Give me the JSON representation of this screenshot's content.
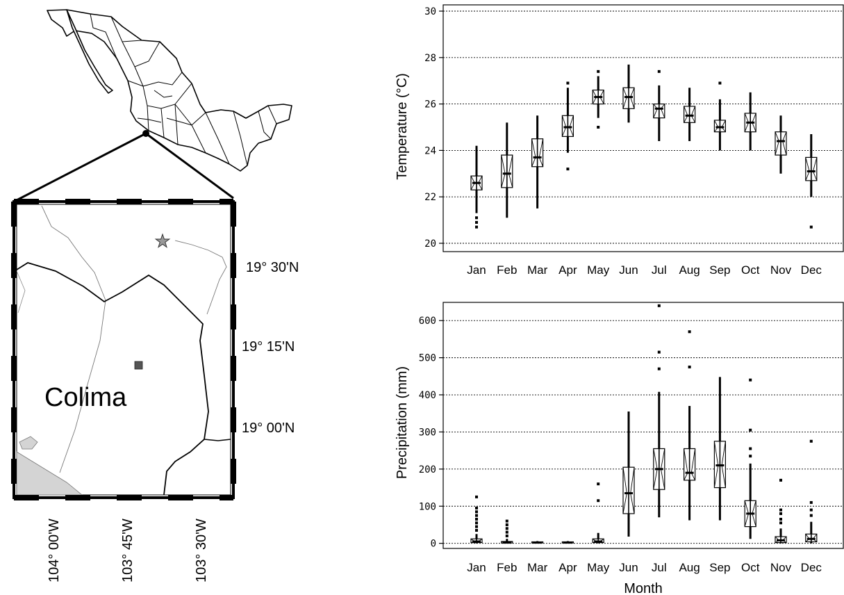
{
  "map": {
    "region_label": "Colima",
    "lat_labels": [
      "19° 30'N",
      "19° 15'N",
      "19° 00'N"
    ],
    "lon_labels": [
      "104° 00'W",
      "103° 45'W",
      "103° 30'W"
    ]
  },
  "chart_data": [
    {
      "type": "box",
      "title": "",
      "xlabel": "",
      "ylabel": "Temperature (°C)",
      "ylim": [
        20,
        30
      ],
      "yticks": [
        20,
        22,
        24,
        26,
        28,
        30
      ],
      "grid": "horizontal-dotted",
      "categories": [
        "Jan",
        "Feb",
        "Mar",
        "Apr",
        "May",
        "Jun",
        "Jul",
        "Aug",
        "Sep",
        "Oct",
        "Nov",
        "Dec"
      ],
      "boxes": [
        {
          "min": 21.3,
          "q1": 22.3,
          "median": 22.6,
          "q3": 22.9,
          "max": 24.2,
          "outliers": [
            20.7,
            20.9,
            21.1
          ]
        },
        {
          "min": 21.1,
          "q1": 22.4,
          "median": 23.0,
          "q3": 23.8,
          "max": 25.2,
          "outliers": []
        },
        {
          "min": 21.5,
          "q1": 23.3,
          "median": 23.7,
          "q3": 24.5,
          "max": 25.5,
          "outliers": []
        },
        {
          "min": 23.9,
          "q1": 24.6,
          "median": 25.0,
          "q3": 25.5,
          "max": 26.7,
          "outliers": [
            26.9,
            23.2
          ]
        },
        {
          "min": 25.4,
          "q1": 26.0,
          "median": 26.3,
          "q3": 26.6,
          "max": 27.2,
          "outliers": [
            27.4,
            25.0
          ]
        },
        {
          "min": 25.2,
          "q1": 25.8,
          "median": 26.3,
          "q3": 26.7,
          "max": 27.7,
          "outliers": []
        },
        {
          "min": 24.4,
          "q1": 25.4,
          "median": 25.8,
          "q3": 26.0,
          "max": 26.8,
          "outliers": [
            27.4
          ]
        },
        {
          "min": 24.4,
          "q1": 25.2,
          "median": 25.5,
          "q3": 25.9,
          "max": 26.7,
          "outliers": []
        },
        {
          "min": 24.0,
          "q1": 24.8,
          "median": 25.0,
          "q3": 25.3,
          "max": 26.2,
          "outliers": [
            26.9
          ]
        },
        {
          "min": 24.0,
          "q1": 24.8,
          "median": 25.2,
          "q3": 25.6,
          "max": 26.5,
          "outliers": []
        },
        {
          "min": 23.0,
          "q1": 23.8,
          "median": 24.4,
          "q3": 24.8,
          "max": 25.5,
          "outliers": []
        },
        {
          "min": 22.0,
          "q1": 22.7,
          "median": 23.1,
          "q3": 23.7,
          "max": 24.7,
          "outliers": [
            20.7
          ]
        }
      ]
    },
    {
      "type": "box",
      "title": "",
      "xlabel": "Month",
      "ylabel": "Precipitation (mm)",
      "ylim": [
        -10,
        650
      ],
      "yticks": [
        0,
        100,
        200,
        300,
        400,
        500,
        600
      ],
      "grid": "horizontal-dotted",
      "categories": [
        "Jan",
        "Feb",
        "Mar",
        "Apr",
        "May",
        "Jun",
        "Jul",
        "Aug",
        "Sep",
        "Oct",
        "Nov",
        "Dec"
      ],
      "boxes": [
        {
          "min": 0,
          "q1": 2,
          "median": 5,
          "q3": 12,
          "max": 25,
          "outliers": [
            35,
            45,
            55,
            65,
            75,
            85,
            95,
            125
          ]
        },
        {
          "min": 0,
          "q1": 1,
          "median": 2,
          "q3": 5,
          "max": 12,
          "outliers": [
            20,
            30,
            40,
            50,
            60
          ]
        },
        {
          "min": 0,
          "q1": 1,
          "median": 2,
          "q3": 4,
          "max": 6,
          "outliers": []
        },
        {
          "min": 0,
          "q1": 1,
          "median": 2,
          "q3": 4,
          "max": 6,
          "outliers": []
        },
        {
          "min": 0,
          "q1": 2,
          "median": 5,
          "q3": 12,
          "max": 28,
          "outliers": [
            115,
            160
          ]
        },
        {
          "min": 18,
          "q1": 80,
          "median": 135,
          "q3": 205,
          "max": 355,
          "outliers": []
        },
        {
          "min": 70,
          "q1": 145,
          "median": 200,
          "q3": 255,
          "max": 408,
          "outliers": [
            470,
            515,
            640
          ]
        },
        {
          "min": 62,
          "q1": 170,
          "median": 190,
          "q3": 255,
          "max": 370,
          "outliers": [
            475,
            570
          ]
        },
        {
          "min": 62,
          "q1": 150,
          "median": 210,
          "q3": 275,
          "max": 448,
          "outliers": []
        },
        {
          "min": 12,
          "q1": 45,
          "median": 80,
          "q3": 115,
          "max": 215,
          "outliers": [
            235,
            255,
            305,
            440
          ]
        },
        {
          "min": 0,
          "q1": 2,
          "median": 8,
          "q3": 18,
          "max": 40,
          "outliers": [
            55,
            65,
            80,
            90,
            170
          ]
        },
        {
          "min": 0,
          "q1": 4,
          "median": 12,
          "q3": 25,
          "max": 58,
          "outliers": [
            75,
            90,
            110,
            275
          ]
        }
      ]
    }
  ]
}
